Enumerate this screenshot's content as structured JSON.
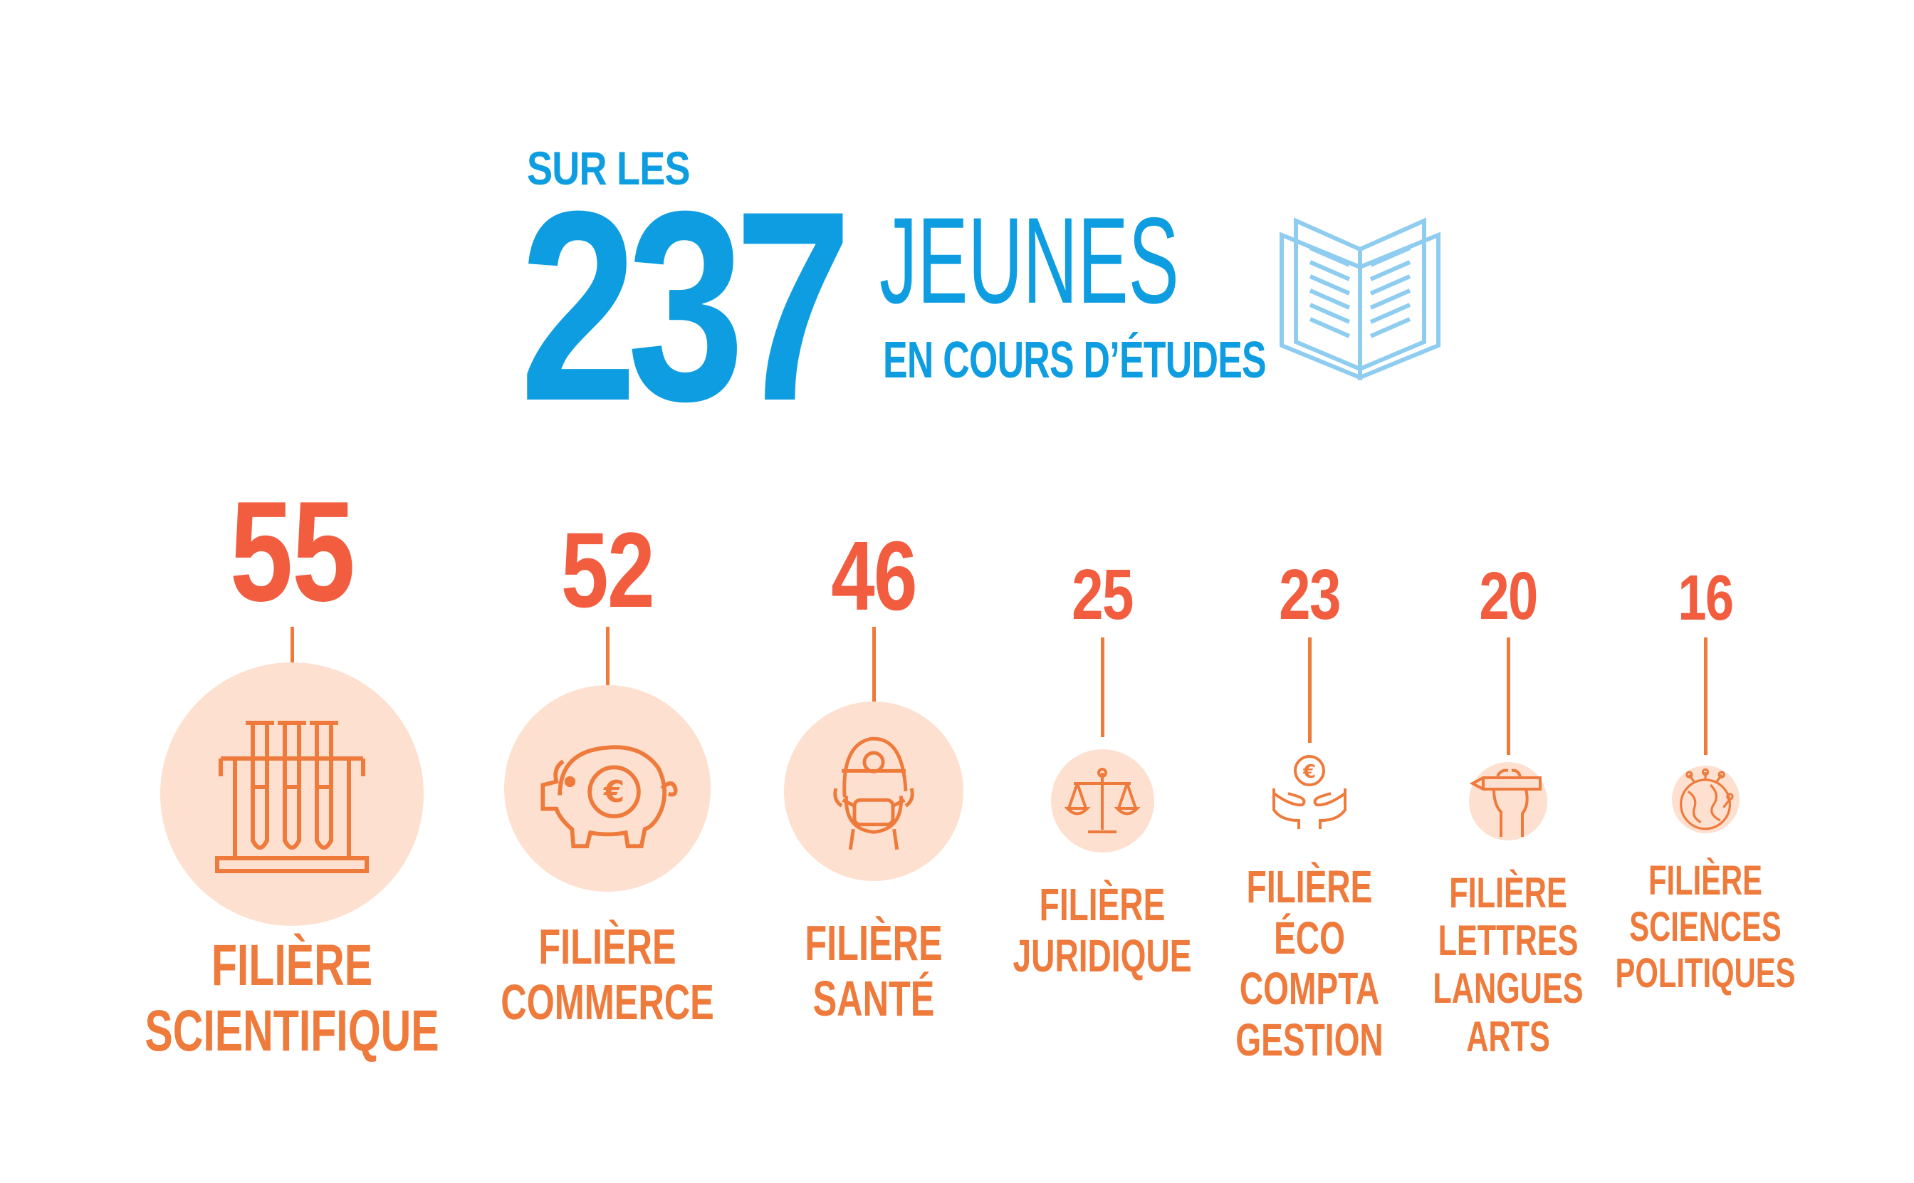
{
  "header": {
    "prefix": "SUR LES",
    "total": "237",
    "noun": "JEUNES",
    "subtitle": "EN COURS D’ÉTUDES",
    "icon": "open-book-icon"
  },
  "colors": {
    "blue": "#0d9de0",
    "light_blue": "#8fcdf0",
    "count_red": "#f25c3f",
    "orange": "#ee7a3c",
    "circle_fill": "#fde0cf"
  },
  "categories": [
    {
      "count": "55",
      "label_lines": [
        "FILIÈRE",
        "SCIENTIFIQUE"
      ],
      "icon": "test-tubes-icon"
    },
    {
      "count": "52",
      "label_lines": [
        "FILIÈRE",
        "COMMERCE"
      ],
      "icon": "piggy-bank-icon"
    },
    {
      "count": "46",
      "label_lines": [
        "FILIÈRE",
        "SANTÉ"
      ],
      "icon": "doctor-icon"
    },
    {
      "count": "25",
      "label_lines": [
        "FILIÈRE",
        "JURIDIQUE"
      ],
      "icon": "scales-icon"
    },
    {
      "count": "23",
      "label_lines": [
        "FILIÈRE",
        "ÉCO",
        "COMPTA",
        "GESTION"
      ],
      "icon": "hands-euro-icon"
    },
    {
      "count": "20",
      "label_lines": [
        "FILIÈRE",
        "LETTRES",
        "LANGUES",
        "ARTS"
      ],
      "icon": "hand-pencil-icon"
    },
    {
      "count": "16",
      "label_lines": [
        "FILIÈRE",
        "SCIENCES",
        "POLITIQUES"
      ],
      "icon": "globe-network-icon"
    }
  ]
}
